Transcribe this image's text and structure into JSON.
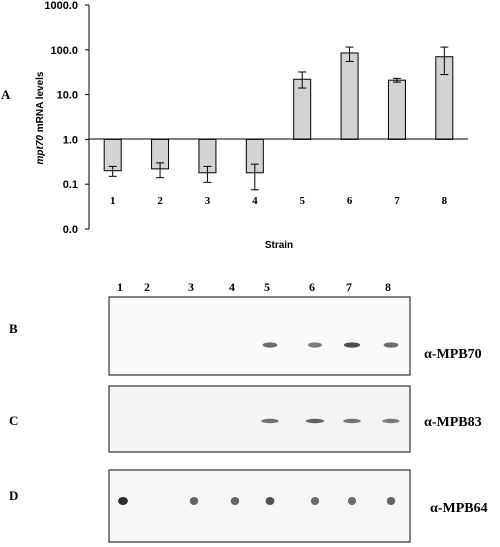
{
  "panel_labels": {
    "a": "A",
    "b": "B",
    "c": "C",
    "d": "D"
  },
  "chart_data": {
    "type": "bar",
    "scale": "log",
    "ylim": [
      0.01,
      1000
    ],
    "baseline": 1.0,
    "ylabel_italic": "mpt70",
    "ylabel_rest": " mRNA levels",
    "xlabel": "Strain",
    "y_tick_labels": [
      "0.0",
      "0.1",
      "1.0",
      "10.0",
      "100.0",
      "1000.0"
    ],
    "y_tick_values": [
      0.01,
      0.1,
      1,
      10,
      100,
      1000
    ],
    "categories": [
      "1",
      "2",
      "3",
      "4",
      "5",
      "6",
      "7",
      "8"
    ],
    "values": [
      0.2,
      0.22,
      0.18,
      0.18,
      22,
      85,
      21,
      70
    ],
    "err_low": [
      0.15,
      0.14,
      0.11,
      0.075,
      14,
      55,
      19,
      28
    ],
    "err_high": [
      0.25,
      0.3,
      0.25,
      0.28,
      32,
      115,
      23,
      115
    ],
    "bar_color": "#d3d3d3",
    "grid": false
  },
  "blot": {
    "lane_labels": [
      "1",
      "2",
      "3",
      "4",
      "5",
      "6",
      "7",
      "8"
    ],
    "antibodies": [
      "α-MPB70",
      "α-MPB83",
      "α-MPB64"
    ],
    "bands_b": [
      0,
      0,
      0,
      0,
      0.55,
      0.45,
      0.75,
      0.55
    ],
    "bands_c": [
      0,
      0,
      0,
      0,
      0.5,
      0.6,
      0.5,
      0.45
    ],
    "bands_d": [
      0.95,
      0,
      0.6,
      0.6,
      0.7,
      0.55,
      0.55,
      0.6
    ]
  }
}
